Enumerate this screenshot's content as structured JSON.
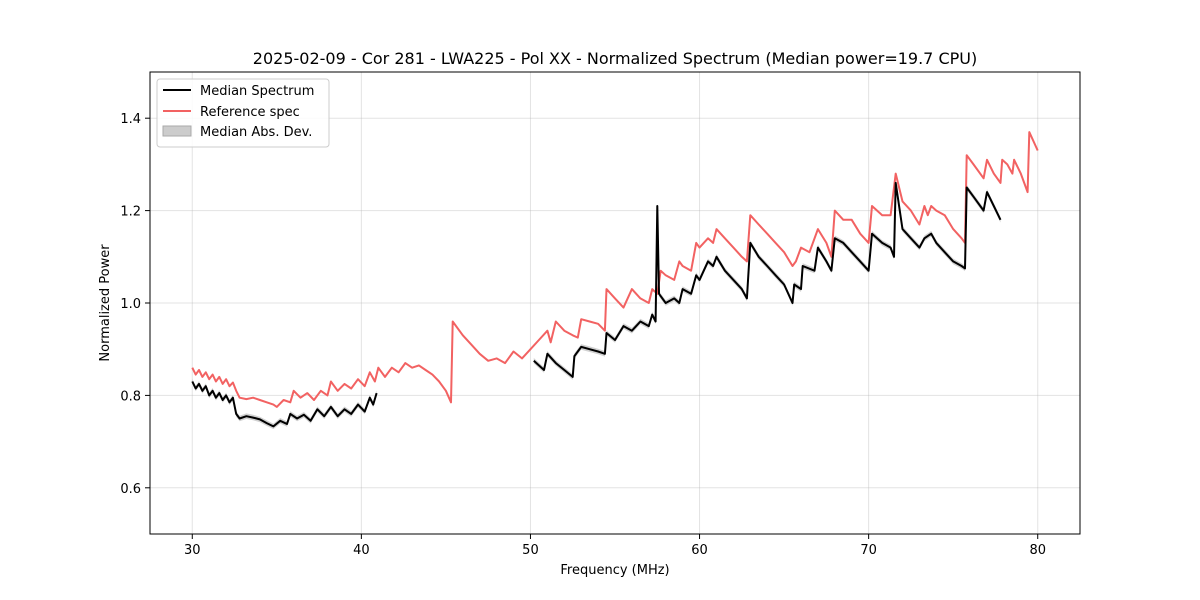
{
  "chart_data": {
    "type": "line",
    "title": "2025-02-09 - Cor 281 - LWA225 - Pol XX - Normalized Spectrum (Median power=19.7 CPU)",
    "xlabel": "Frequency (MHz)",
    "ylabel": "Normalized Power",
    "xlim": [
      27.5,
      82.5
    ],
    "ylim": [
      0.5,
      1.5
    ],
    "xticks": [
      30,
      40,
      50,
      60,
      70,
      80
    ],
    "yticks": [
      0.6,
      0.8,
      1.0,
      1.2,
      1.4
    ],
    "xtick_labels": [
      "30",
      "40",
      "50",
      "60",
      "70",
      "80"
    ],
    "ytick_labels": [
      "0.6",
      "0.8",
      "1.0",
      "1.2",
      "1.4"
    ],
    "grid": true,
    "legend": {
      "placement": "top-left",
      "entries": [
        {
          "label": "Median Spectrum",
          "kind": "line",
          "color": "#000000"
        },
        {
          "label": "Reference spec",
          "kind": "line",
          "color": "#f26262"
        },
        {
          "label": "Median Abs. Dev.",
          "kind": "patch",
          "color": "#cccccc"
        }
      ]
    },
    "series": [
      {
        "name": "Reference spec",
        "color": "#f26262",
        "segments": [
          [
            [
              30.0,
              0.86
            ],
            [
              30.2,
              0.845
            ],
            [
              30.4,
              0.855
            ],
            [
              30.6,
              0.84
            ],
            [
              30.8,
              0.85
            ],
            [
              31.0,
              0.835
            ],
            [
              31.2,
              0.845
            ],
            [
              31.4,
              0.83
            ],
            [
              31.6,
              0.84
            ],
            [
              31.8,
              0.825
            ],
            [
              32.0,
              0.835
            ],
            [
              32.2,
              0.82
            ],
            [
              32.4,
              0.828
            ],
            [
              32.6,
              0.81
            ],
            [
              32.8,
              0.795
            ],
            [
              33.2,
              0.792
            ],
            [
              33.6,
              0.795
            ],
            [
              34.0,
              0.79
            ],
            [
              34.4,
              0.785
            ],
            [
              34.8,
              0.78
            ],
            [
              35.0,
              0.775
            ],
            [
              35.4,
              0.79
            ],
            [
              35.8,
              0.785
            ],
            [
              36.0,
              0.81
            ],
            [
              36.4,
              0.795
            ],
            [
              36.8,
              0.805
            ],
            [
              37.2,
              0.79
            ],
            [
              37.6,
              0.81
            ],
            [
              38.0,
              0.8
            ],
            [
              38.2,
              0.83
            ],
            [
              38.6,
              0.81
            ],
            [
              39.0,
              0.825
            ],
            [
              39.4,
              0.815
            ],
            [
              39.8,
              0.835
            ],
            [
              40.2,
              0.82
            ],
            [
              40.5,
              0.85
            ],
            [
              40.8,
              0.83
            ],
            [
              41.0,
              0.86
            ],
            [
              41.4,
              0.84
            ],
            [
              41.8,
              0.86
            ],
            [
              42.2,
              0.85
            ],
            [
              42.6,
              0.87
            ],
            [
              43.0,
              0.86
            ],
            [
              43.4,
              0.865
            ],
            [
              43.8,
              0.855
            ],
            [
              44.2,
              0.845
            ],
            [
              44.6,
              0.83
            ],
            [
              45.0,
              0.81
            ],
            [
              45.3,
              0.785
            ],
            [
              45.4,
              0.96
            ],
            [
              46.0,
              0.93
            ],
            [
              46.5,
              0.91
            ],
            [
              47.0,
              0.89
            ],
            [
              47.5,
              0.875
            ],
            [
              48.0,
              0.88
            ],
            [
              48.5,
              0.87
            ],
            [
              49.0,
              0.895
            ],
            [
              49.5,
              0.88
            ],
            [
              50.0,
              0.9
            ],
            [
              50.5,
              0.92
            ],
            [
              51.0,
              0.94
            ],
            [
              51.2,
              0.915
            ],
            [
              51.5,
              0.96
            ],
            [
              52.0,
              0.94
            ],
            [
              52.5,
              0.93
            ],
            [
              52.8,
              0.925
            ],
            [
              53.0,
              0.965
            ],
            [
              53.5,
              0.96
            ],
            [
              54.0,
              0.955
            ],
            [
              54.4,
              0.94
            ],
            [
              54.5,
              1.03
            ],
            [
              55.0,
              1.01
            ],
            [
              55.5,
              0.99
            ],
            [
              56.0,
              1.03
            ],
            [
              56.5,
              1.01
            ],
            [
              57.0,
              1.0
            ],
            [
              57.2,
              1.03
            ],
            [
              57.5,
              1.02
            ],
            [
              57.7,
              1.07
            ],
            [
              58.0,
              1.06
            ],
            [
              58.5,
              1.05
            ],
            [
              58.8,
              1.09
            ],
            [
              59.0,
              1.08
            ],
            [
              59.5,
              1.07
            ],
            [
              59.8,
              1.13
            ],
            [
              60.0,
              1.12
            ],
            [
              60.5,
              1.14
            ],
            [
              60.8,
              1.13
            ],
            [
              61.0,
              1.16
            ],
            [
              61.5,
              1.14
            ],
            [
              62.0,
              1.12
            ],
            [
              62.5,
              1.1
            ],
            [
              62.8,
              1.09
            ],
            [
              63.0,
              1.19
            ],
            [
              63.5,
              1.17
            ],
            [
              64.0,
              1.15
            ],
            [
              64.5,
              1.13
            ],
            [
              65.0,
              1.11
            ],
            [
              65.5,
              1.08
            ],
            [
              65.7,
              1.09
            ],
            [
              66.0,
              1.12
            ],
            [
              66.5,
              1.11
            ],
            [
              67.0,
              1.16
            ],
            [
              67.5,
              1.13
            ],
            [
              67.8,
              1.1
            ],
            [
              68.0,
              1.2
            ],
            [
              68.5,
              1.18
            ],
            [
              69.0,
              1.18
            ],
            [
              69.5,
              1.15
            ],
            [
              70.0,
              1.13
            ],
            [
              70.2,
              1.21
            ],
            [
              70.8,
              1.19
            ],
            [
              71.3,
              1.19
            ],
            [
              71.6,
              1.28
            ],
            [
              72.0,
              1.22
            ],
            [
              72.5,
              1.2
            ],
            [
              73.0,
              1.17
            ],
            [
              73.3,
              1.21
            ],
            [
              73.5,
              1.19
            ],
            [
              73.7,
              1.21
            ],
            [
              74.0,
              1.2
            ],
            [
              74.5,
              1.19
            ],
            [
              75.0,
              1.16
            ],
            [
              75.5,
              1.14
            ],
            [
              75.7,
              1.13
            ],
            [
              75.8,
              1.32
            ],
            [
              76.2,
              1.3
            ],
            [
              76.8,
              1.27
            ],
            [
              77.0,
              1.31
            ],
            [
              77.4,
              1.28
            ],
            [
              77.8,
              1.26
            ],
            [
              77.9,
              1.31
            ],
            [
              78.2,
              1.3
            ],
            [
              78.5,
              1.28
            ],
            [
              78.6,
              1.31
            ],
            [
              79.0,
              1.28
            ],
            [
              79.4,
              1.24
            ],
            [
              79.5,
              1.37
            ],
            [
              80.0,
              1.33
            ]
          ]
        ]
      },
      {
        "name": "Median Spectrum",
        "color": "#000000",
        "band_color": "#cccccc",
        "band_halfwidth": 0.006,
        "segments": [
          [
            [
              30.0,
              0.83
            ],
            [
              30.2,
              0.815
            ],
            [
              30.4,
              0.825
            ],
            [
              30.6,
              0.81
            ],
            [
              30.8,
              0.82
            ],
            [
              31.0,
              0.8
            ],
            [
              31.2,
              0.81
            ],
            [
              31.4,
              0.795
            ],
            [
              31.6,
              0.805
            ],
            [
              31.8,
              0.79
            ],
            [
              32.0,
              0.8
            ],
            [
              32.2,
              0.785
            ],
            [
              32.4,
              0.795
            ],
            [
              32.6,
              0.76
            ],
            [
              32.8,
              0.75
            ],
            [
              33.2,
              0.755
            ],
            [
              33.6,
              0.752
            ],
            [
              34.0,
              0.748
            ],
            [
              34.4,
              0.74
            ],
            [
              34.8,
              0.733
            ],
            [
              35.2,
              0.745
            ],
            [
              35.6,
              0.738
            ],
            [
              35.8,
              0.76
            ],
            [
              36.2,
              0.75
            ],
            [
              36.6,
              0.758
            ],
            [
              37.0,
              0.745
            ],
            [
              37.4,
              0.77
            ],
            [
              37.8,
              0.755
            ],
            [
              38.2,
              0.775
            ],
            [
              38.6,
              0.755
            ],
            [
              39.0,
              0.77
            ],
            [
              39.4,
              0.76
            ],
            [
              39.8,
              0.78
            ],
            [
              40.2,
              0.765
            ],
            [
              40.5,
              0.795
            ],
            [
              40.7,
              0.78
            ],
            [
              40.9,
              0.805
            ]
          ],
          [
            [
              50.2,
              0.875
            ],
            [
              50.5,
              0.865
            ],
            [
              50.8,
              0.855
            ],
            [
              51.0,
              0.89
            ],
            [
              51.5,
              0.87
            ],
            [
              52.0,
              0.855
            ],
            [
              52.5,
              0.84
            ],
            [
              52.6,
              0.885
            ],
            [
              53.0,
              0.905
            ],
            [
              53.5,
              0.9
            ],
            [
              54.0,
              0.895
            ],
            [
              54.4,
              0.89
            ],
            [
              54.5,
              0.935
            ],
            [
              55.0,
              0.92
            ],
            [
              55.5,
              0.95
            ],
            [
              56.0,
              0.94
            ],
            [
              56.5,
              0.96
            ],
            [
              57.0,
              0.95
            ],
            [
              57.2,
              0.975
            ],
            [
              57.4,
              0.96
            ],
            [
              57.5,
              1.21
            ],
            [
              57.6,
              1.02
            ],
            [
              58.0,
              1.0
            ],
            [
              58.5,
              1.01
            ],
            [
              58.8,
              1.0
            ],
            [
              59.0,
              1.03
            ],
            [
              59.5,
              1.02
            ],
            [
              59.8,
              1.06
            ],
            [
              60.0,
              1.05
            ],
            [
              60.5,
              1.09
            ],
            [
              60.8,
              1.08
            ],
            [
              61.0,
              1.1
            ],
            [
              61.5,
              1.07
            ],
            [
              62.0,
              1.05
            ],
            [
              62.5,
              1.03
            ],
            [
              62.8,
              1.01
            ],
            [
              63.0,
              1.13
            ],
            [
              63.5,
              1.1
            ],
            [
              64.0,
              1.08
            ],
            [
              64.5,
              1.06
            ],
            [
              65.0,
              1.04
            ],
            [
              65.5,
              1.0
            ],
            [
              65.6,
              1.04
            ],
            [
              66.0,
              1.03
            ],
            [
              66.1,
              1.08
            ],
            [
              66.8,
              1.07
            ],
            [
              67.0,
              1.12
            ],
            [
              67.5,
              1.09
            ],
            [
              67.8,
              1.07
            ],
            [
              68.0,
              1.14
            ],
            [
              68.5,
              1.13
            ],
            [
              69.0,
              1.11
            ],
            [
              69.5,
              1.09
            ],
            [
              70.0,
              1.07
            ],
            [
              70.2,
              1.15
            ],
            [
              70.8,
              1.13
            ],
            [
              71.3,
              1.12
            ],
            [
              71.5,
              1.1
            ],
            [
              71.6,
              1.26
            ],
            [
              72.0,
              1.16
            ],
            [
              72.5,
              1.14
            ],
            [
              73.0,
              1.12
            ],
            [
              73.3,
              1.14
            ],
            [
              73.7,
              1.15
            ],
            [
              74.0,
              1.13
            ],
            [
              74.5,
              1.11
            ],
            [
              75.0,
              1.09
            ],
            [
              75.5,
              1.08
            ],
            [
              75.7,
              1.075
            ],
            [
              75.8,
              1.25
            ],
            [
              76.2,
              1.23
            ],
            [
              76.8,
              1.2
            ],
            [
              77.0,
              1.24
            ],
            [
              77.4,
              1.21
            ],
            [
              77.8,
              1.18
            ]
          ]
        ]
      }
    ]
  }
}
